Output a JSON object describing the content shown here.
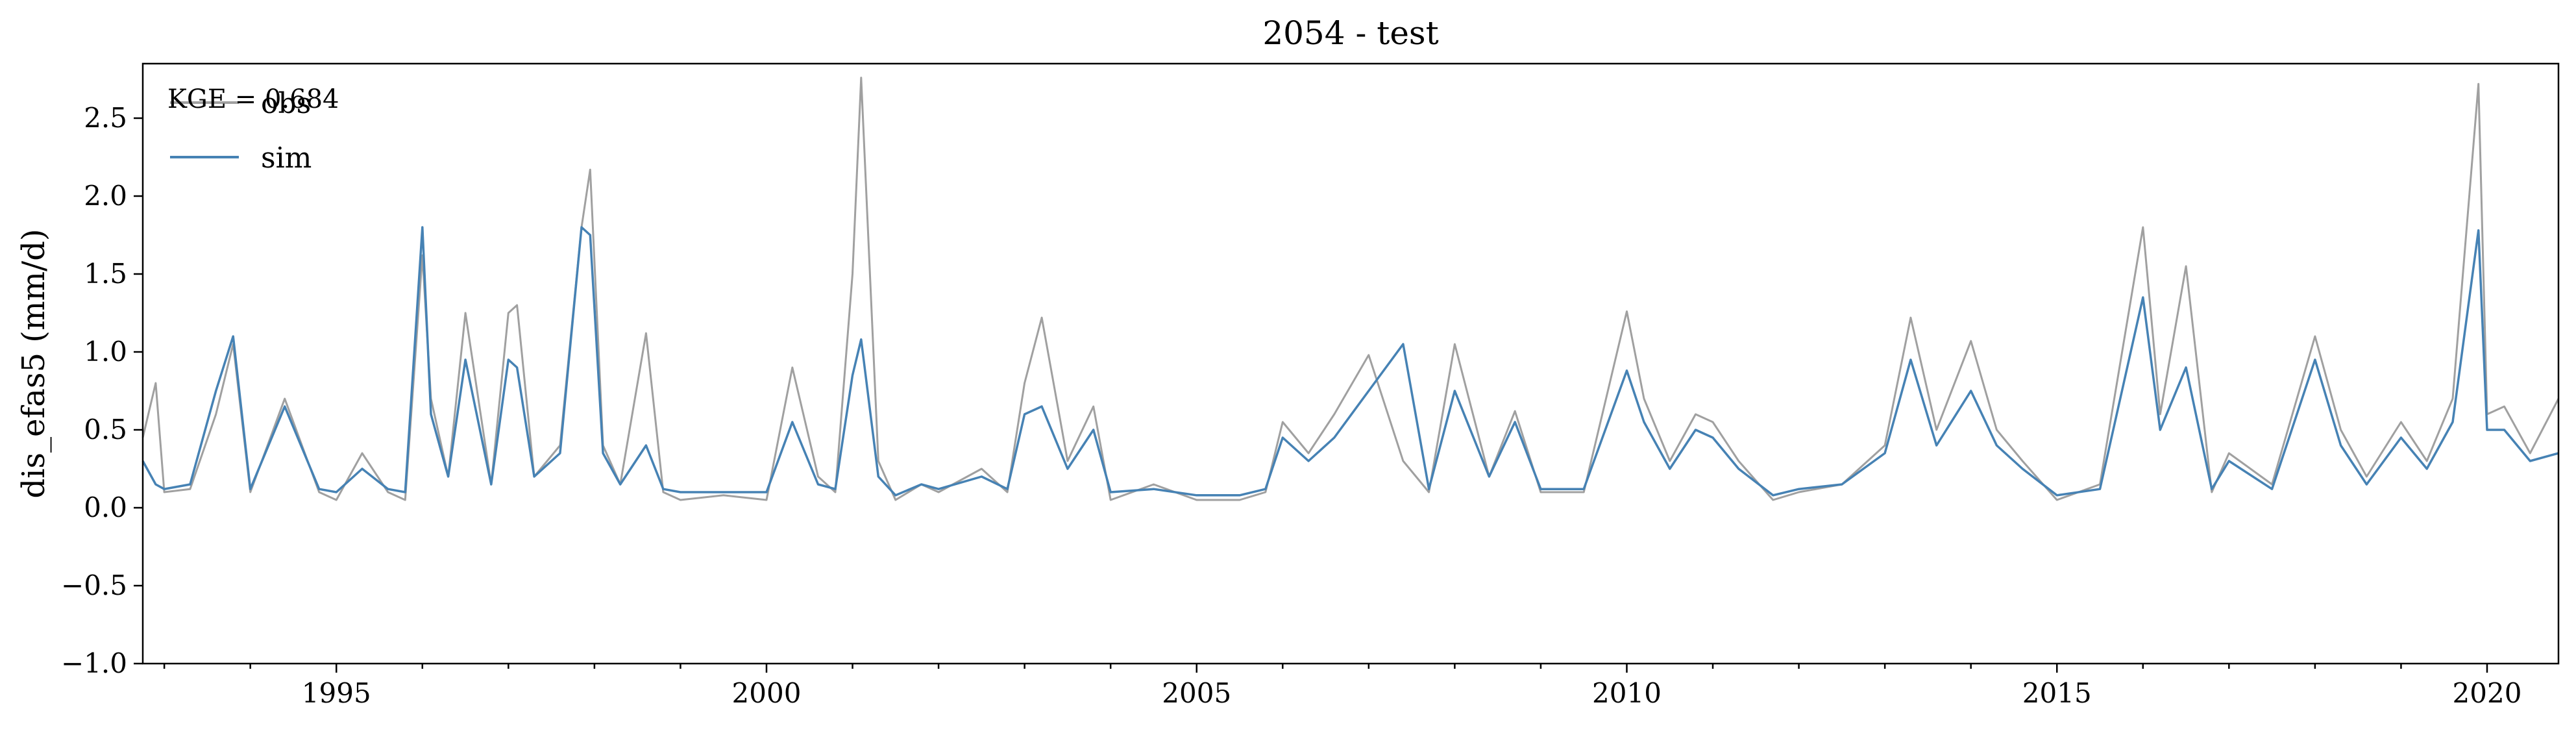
{
  "chart_data": {
    "type": "line",
    "title": "2054 - test",
    "xlabel": "",
    "ylabel": "dis_efas5 (mm/d)",
    "xlim": [
      1992.75,
      2020.83
    ],
    "ylim": [
      -1.0,
      2.85
    ],
    "x_ticks": [
      1995,
      2000,
      2005,
      2010,
      2015,
      2020
    ],
    "x_tick_labels": [
      "1995",
      "2000",
      "2005",
      "2010",
      "2015",
      "2020"
    ],
    "y_ticks": [
      -1.0,
      -0.5,
      0.0,
      0.5,
      1.0,
      1.5,
      2.0,
      2.5
    ],
    "y_tick_labels": [
      "−1.0",
      "−0.5",
      "0.0",
      "0.5",
      "1.0",
      "1.5",
      "2.0",
      "2.5"
    ],
    "grid": false,
    "legend_position": "top-left",
    "annotation": "KGE = 0.684",
    "series": [
      {
        "name": "obs",
        "color": "#a0a0a0",
        "x": [
          1992.75,
          1992.9,
          1993.0,
          1993.3,
          1993.6,
          1993.8,
          1994.0,
          1994.4,
          1994.8,
          1995.0,
          1995.3,
          1995.6,
          1995.8,
          1996.0,
          1996.1,
          1996.3,
          1996.5,
          1996.8,
          1997.0,
          1997.1,
          1997.3,
          1997.6,
          1997.85,
          1997.95,
          1998.1,
          1998.3,
          1998.6,
          1998.8,
          1999.0,
          1999.5,
          2000.0,
          2000.3,
          2000.6,
          2000.8,
          2001.0,
          2001.1,
          2001.3,
          2001.5,
          2001.8,
          2002.0,
          2002.5,
          2002.8,
          2003.0,
          2003.2,
          2003.5,
          2003.8,
          2004.0,
          2004.5,
          2005.0,
          2005.5,
          2005.8,
          2006.0,
          2006.3,
          2006.6,
          2007.0,
          2007.4,
          2007.7,
          2008.0,
          2008.4,
          2008.7,
          2009.0,
          2009.5,
          2010.0,
          2010.2,
          2010.5,
          2010.8,
          2011.0,
          2011.3,
          2011.7,
          2012.0,
          2012.5,
          2013.0,
          2013.3,
          2013.6,
          2014.0,
          2014.3,
          2014.6,
          2015.0,
          2015.5,
          2016.0,
          2016.2,
          2016.5,
          2016.8,
          2017.0,
          2017.5,
          2018.0,
          2018.3,
          2018.6,
          2019.0,
          2019.3,
          2019.6,
          2019.9,
          2020.0,
          2020.2,
          2020.5,
          2020.83
        ],
        "y": [
          0.45,
          0.8,
          0.1,
          0.12,
          0.6,
          1.05,
          0.1,
          0.7,
          0.1,
          0.05,
          0.35,
          0.1,
          0.05,
          1.62,
          0.7,
          0.2,
          1.25,
          0.15,
          1.25,
          1.3,
          0.2,
          0.4,
          1.8,
          2.17,
          0.4,
          0.15,
          1.12,
          0.1,
          0.05,
          0.08,
          0.05,
          0.9,
          0.2,
          0.1,
          1.5,
          2.76,
          0.3,
          0.05,
          0.15,
          0.1,
          0.25,
          0.1,
          0.8,
          1.22,
          0.3,
          0.65,
          0.05,
          0.15,
          0.05,
          0.05,
          0.1,
          0.55,
          0.35,
          0.6,
          0.98,
          0.3,
          0.1,
          1.05,
          0.2,
          0.62,
          0.1,
          0.1,
          1.26,
          0.7,
          0.3,
          0.6,
          0.55,
          0.3,
          0.05,
          0.1,
          0.15,
          0.4,
          1.22,
          0.5,
          1.07,
          0.5,
          0.3,
          0.05,
          0.15,
          1.8,
          0.6,
          1.55,
          0.1,
          0.35,
          0.15,
          1.1,
          0.5,
          0.2,
          0.55,
          0.3,
          0.7,
          2.72,
          0.6,
          0.65,
          0.35,
          0.7
        ]
      },
      {
        "name": "sim",
        "color": "#4682b4",
        "x": [
          1992.75,
          1992.9,
          1993.0,
          1993.3,
          1993.6,
          1993.8,
          1994.0,
          1994.4,
          1994.8,
          1995.0,
          1995.3,
          1995.6,
          1995.8,
          1996.0,
          1996.1,
          1996.3,
          1996.5,
          1996.8,
          1997.0,
          1997.1,
          1997.3,
          1997.6,
          1997.85,
          1997.95,
          1998.1,
          1998.3,
          1998.6,
          1998.8,
          1999.0,
          1999.5,
          2000.0,
          2000.3,
          2000.6,
          2000.8,
          2001.0,
          2001.1,
          2001.3,
          2001.5,
          2001.8,
          2002.0,
          2002.5,
          2002.8,
          2003.0,
          2003.2,
          2003.5,
          2003.8,
          2004.0,
          2004.5,
          2005.0,
          2005.5,
          2005.8,
          2006.0,
          2006.3,
          2006.6,
          2007.0,
          2007.4,
          2007.7,
          2008.0,
          2008.4,
          2008.7,
          2009.0,
          2009.5,
          2010.0,
          2010.2,
          2010.5,
          2010.8,
          2011.0,
          2011.3,
          2011.7,
          2012.0,
          2012.5,
          2013.0,
          2013.3,
          2013.6,
          2014.0,
          2014.3,
          2014.6,
          2015.0,
          2015.5,
          2016.0,
          2016.2,
          2016.5,
          2016.8,
          2017.0,
          2017.5,
          2018.0,
          2018.3,
          2018.6,
          2019.0,
          2019.3,
          2019.6,
          2019.9,
          2020.0,
          2020.2,
          2020.5,
          2020.83
        ],
        "y": [
          0.3,
          0.15,
          0.12,
          0.15,
          0.75,
          1.1,
          0.12,
          0.65,
          0.12,
          0.1,
          0.25,
          0.12,
          0.1,
          1.8,
          0.6,
          0.2,
          0.95,
          0.15,
          0.95,
          0.9,
          0.2,
          0.35,
          1.8,
          1.75,
          0.35,
          0.15,
          0.4,
          0.12,
          0.1,
          0.1,
          0.1,
          0.55,
          0.15,
          0.12,
          0.85,
          1.08,
          0.2,
          0.08,
          0.15,
          0.12,
          0.2,
          0.12,
          0.6,
          0.65,
          0.25,
          0.5,
          0.1,
          0.12,
          0.08,
          0.08,
          0.12,
          0.45,
          0.3,
          0.45,
          0.75,
          1.05,
          0.12,
          0.75,
          0.2,
          0.55,
          0.12,
          0.12,
          0.88,
          0.55,
          0.25,
          0.5,
          0.45,
          0.25,
          0.08,
          0.12,
          0.15,
          0.35,
          0.95,
          0.4,
          0.75,
          0.4,
          0.25,
          0.08,
          0.12,
          1.35,
          0.5,
          0.9,
          0.12,
          0.3,
          0.12,
          0.95,
          0.4,
          0.15,
          0.45,
          0.25,
          0.55,
          1.78,
          0.5,
          0.5,
          0.3,
          0.35
        ]
      }
    ]
  }
}
